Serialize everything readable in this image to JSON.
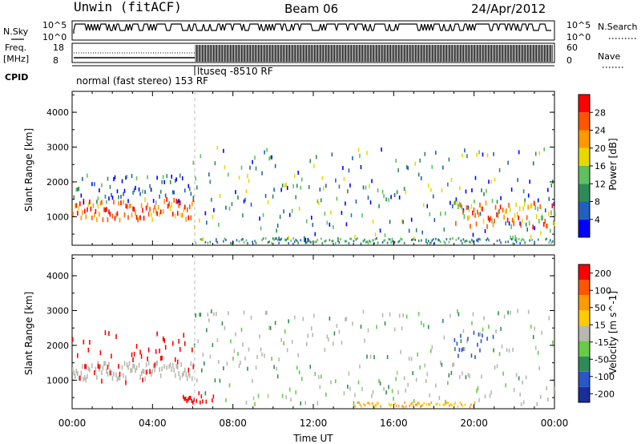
{
  "header": {
    "title": "Unwin (fitACF)",
    "beam": "Beam 06",
    "date": "24/Apr/2012"
  },
  "top_strip": {
    "left_label": "N.Sky",
    "right_label": "N.Search",
    "left_ticks": [
      "10^5",
      "10^0"
    ],
    "right_ticks": [
      "10^5",
      "10^0"
    ]
  },
  "freq_strip": {
    "left_label_1": "Freq.",
    "left_label_2": "[MHz]",
    "right_label": "Nave",
    "left_ticks": [
      "18",
      "8"
    ],
    "right_ticks": [
      "60",
      "0"
    ]
  },
  "cpid": {
    "label": "CPID",
    "seg1": "normal (fast stereo) 153 RF",
    "seg2": "ltuseq -8510 RF"
  },
  "chart_data": [
    {
      "type": "heatmap",
      "ylabel": "Slant Range [km]",
      "ylim": [
        180,
        4600
      ],
      "yticks": [
        "1000",
        "2000",
        "3000",
        "4000"
      ],
      "xlim": [
        0,
        24
      ],
      "colorbar_label": "Power [dB]",
      "colorbar_ticks": [
        "4",
        "8",
        "12",
        "16",
        "20",
        "24",
        "28"
      ],
      "colorbar_colors": [
        "#0000ff",
        "#2060c0",
        "#2e8b57",
        "#5fc05f",
        "#e8d800",
        "#ff9900",
        "#ff5500",
        "#ff0000"
      ]
    },
    {
      "type": "heatmap",
      "ylabel": "Slant Range [km]",
      "ylim": [
        180,
        4600
      ],
      "yticks": [
        "1000",
        "2000",
        "3000",
        "4000"
      ],
      "xlim": [
        0,
        24
      ],
      "colorbar_label": "Velocity [m s^-1]",
      "colorbar_ticks": [
        "200",
        "100",
        "50",
        "15",
        "-15",
        "-50",
        "-100",
        "-200"
      ],
      "colorbar_colors": [
        "#1a2e9a",
        "#2a56c8",
        "#2e8b57",
        "#66cc44",
        "#b8b8b0",
        "#ffcc00",
        "#ff9900",
        "#ff5500",
        "#ff0000"
      ]
    }
  ],
  "xaxis": {
    "ticks": [
      "00:00",
      "04:00",
      "08:00",
      "12:00",
      "16:00",
      "20:00",
      "00:00"
    ],
    "label": "Time UT"
  }
}
